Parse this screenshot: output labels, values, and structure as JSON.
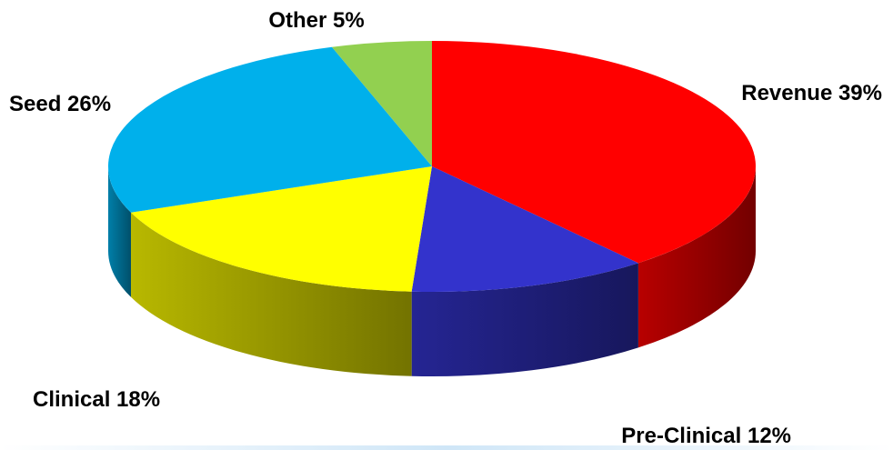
{
  "chart_data": {
    "type": "pie",
    "style": "3d",
    "title": "",
    "slices": [
      {
        "label": "Revenue 39%",
        "category": "Revenue",
        "value": 39,
        "color": "#ff0000"
      },
      {
        "label": "Pre-Clinical 12%",
        "category": "Pre-Clinical",
        "value": 12,
        "color": "#3333cc"
      },
      {
        "label": "Clinical 18%",
        "category": "Clinical",
        "value": 18,
        "color": "#ffff00"
      },
      {
        "label": "Seed 26%",
        "category": "Seed",
        "value": 26,
        "color": "#00b0eb"
      },
      {
        "label": "Other 5%",
        "category": "Other",
        "value": 5,
        "color": "#92d050"
      }
    ]
  }
}
